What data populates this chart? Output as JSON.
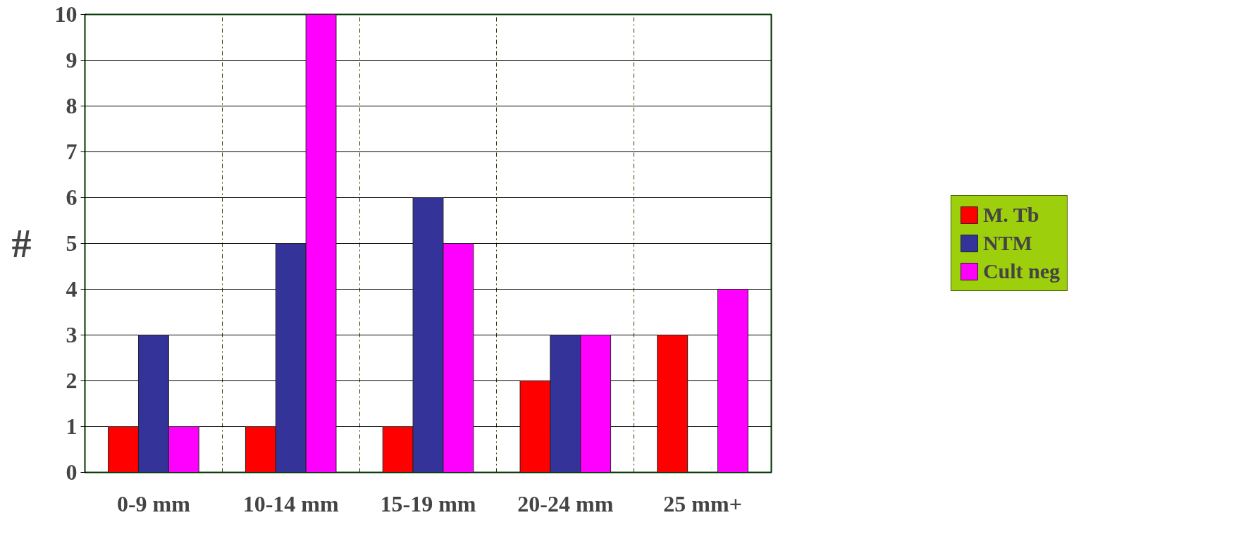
{
  "chart_data": {
    "type": "bar",
    "ylabel": "#",
    "categories": [
      "0-9 mm",
      "10-14 mm",
      "15-19 mm",
      "20-24 mm",
      "25 mm+"
    ],
    "series": [
      {
        "name": "M. Tb",
        "color": "#ff0000",
        "values": [
          1,
          1,
          1,
          2,
          3
        ]
      },
      {
        "name": "NTM",
        "color": "#333399",
        "values": [
          3,
          5,
          6,
          3,
          0
        ]
      },
      {
        "name": "Cult neg",
        "color": "#ff00ff",
        "values": [
          1,
          10,
          5,
          3,
          4
        ]
      }
    ],
    "ylim": [
      0,
      10
    ],
    "yticks": [
      0,
      1,
      2,
      3,
      4,
      5,
      6,
      7,
      8,
      9,
      10
    ],
    "grid": true,
    "legend": "right"
  }
}
